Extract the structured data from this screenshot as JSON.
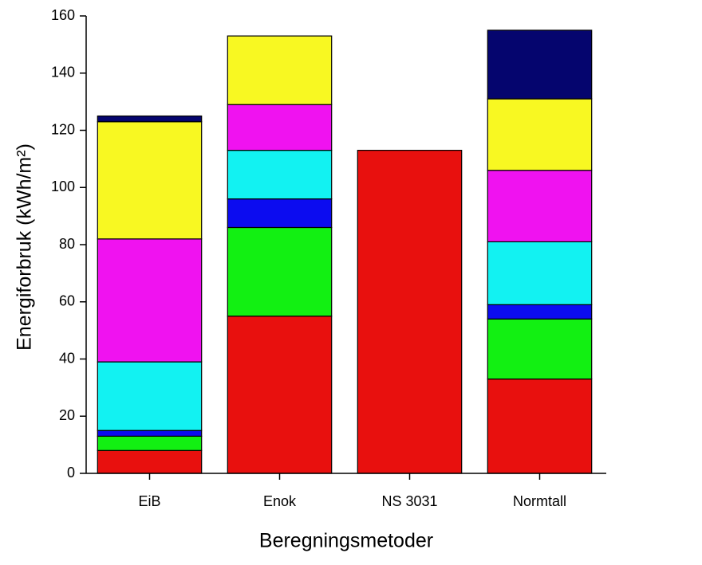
{
  "chart_data": {
    "type": "stacked_bar",
    "x_label": "Beregningsmetoder",
    "y_label": "Energiforbruk (kWh/m²)",
    "categories": [
      "EiB",
      "Enok",
      "NS 3031",
      "Normtall"
    ],
    "series": [
      {
        "color": "#e8100e",
        "values": [
          8,
          55,
          113,
          33
        ]
      },
      {
        "color": "#12f012",
        "values": [
          5,
          31,
          0,
          21
        ]
      },
      {
        "color": "#0c0cf0",
        "values": [
          2,
          10,
          0,
          5
        ]
      },
      {
        "color": "#12f2f2",
        "values": [
          24,
          17,
          0,
          22
        ]
      },
      {
        "color": "#f012f0",
        "values": [
          43,
          16,
          0,
          25
        ]
      },
      {
        "color": "#f8f822",
        "values": [
          41,
          24,
          0,
          25
        ]
      },
      {
        "color": "#05056e",
        "values": [
          2,
          0,
          0,
          24
        ]
      }
    ],
    "ylim": [
      0,
      160
    ],
    "yticks": [
      0,
      20,
      40,
      60,
      80,
      100,
      120,
      140,
      160
    ]
  }
}
